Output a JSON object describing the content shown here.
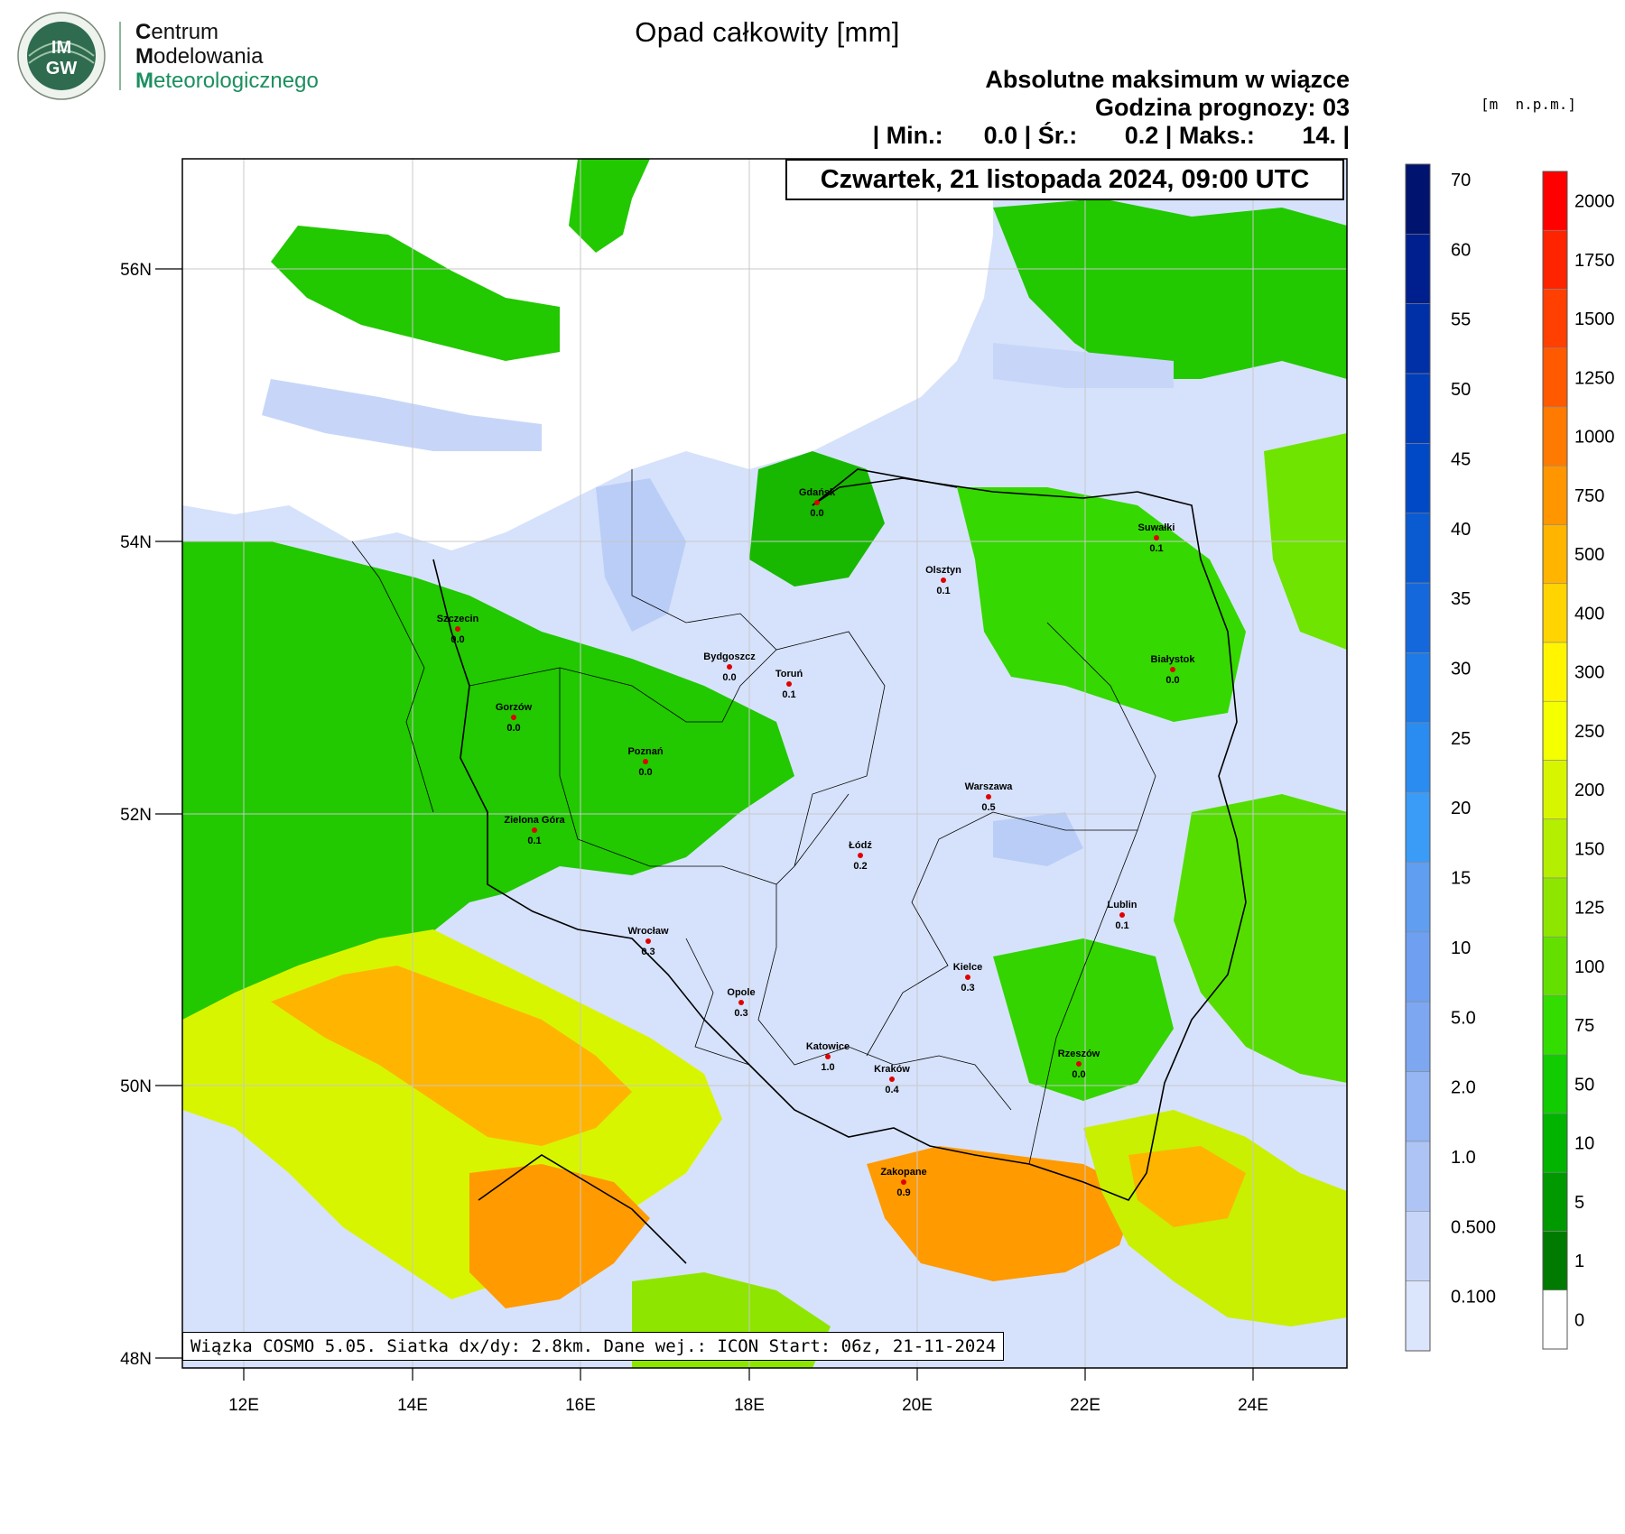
{
  "header": {
    "org_line1_initial": "C",
    "org_line1_rest": "entrum",
    "org_line2_initial": "M",
    "org_line2_rest": "odelowania",
    "org_line3_initial": "M",
    "org_line3_rest": "eteorologicznego",
    "logo_text_top": "IM",
    "logo_text_bottom": "GW"
  },
  "title": "Opad całkowity [mm]",
  "subtitle": {
    "line1": "Absolutne maksimum w wiązce",
    "line2": "Godzina prognozy: 03",
    "line3": "| Min.:      0.0 | Śr.:       0.2 | Maks.:       14. |"
  },
  "date_label": "Czwartek, 21 listopada 2024, 09:00 UTC",
  "footer": "Wiązka COSMO 5.05. Siatka dx/dy: 2.8km. Dane wej.: ICON Start: 06z, 21-11-2024",
  "elevation_unit": "[m  n.p.m.]",
  "axes": {
    "lat_ticks": [
      "56N",
      "54N",
      "52N",
      "50N",
      "48N"
    ],
    "lon_ticks": [
      "12E",
      "14E",
      "16E",
      "18E",
      "20E",
      "22E",
      "24E"
    ]
  },
  "precip_scale": {
    "labels": [
      "70",
      "60",
      "55",
      "50",
      "45",
      "40",
      "35",
      "30",
      "25",
      "20",
      "15",
      "10",
      "5.0",
      "2.0",
      "1.0",
      "0.500",
      "0.100"
    ],
    "colors": [
      "#00136e",
      "#001f8e",
      "#0030a8",
      "#003db8",
      "#0049c6",
      "#0a5ad2",
      "#1468dc",
      "#1e7ae6",
      "#2a8cf0",
      "#3a9cf6",
      "#5f9ef0",
      "#6e9ff0",
      "#7ea7f1",
      "#95b5f3",
      "#adc4f5",
      "#c7d6f8",
      "#dbe5fb"
    ]
  },
  "elev_scale": {
    "labels": [
      "2000",
      "1750",
      "1500",
      "1250",
      "1000",
      "750",
      "500",
      "400",
      "300",
      "250",
      "200",
      "150",
      "125",
      "100",
      "75",
      "50",
      "10",
      "5",
      "1",
      "0"
    ],
    "colors": [
      "#ff0000",
      "#ff2400",
      "#ff4000",
      "#ff5a00",
      "#ff7a00",
      "#ff9600",
      "#ffb400",
      "#ffd400",
      "#fff500",
      "#f5ff00",
      "#d8f500",
      "#b4ee00",
      "#8ee600",
      "#64e000",
      "#34dd00",
      "#10cc00",
      "#00b400",
      "#009a00",
      "#007a00",
      "#ffffff"
    ]
  },
  "cities": [
    {
      "name": "Gdańsk",
      "value": "0.0"
    },
    {
      "name": "Suwałki",
      "value": "0.1"
    },
    {
      "name": "Olsztyn",
      "value": "0.1"
    },
    {
      "name": "Szczecin",
      "value": "0.0"
    },
    {
      "name": "Bydgoszcz",
      "value": "0.0"
    },
    {
      "name": "Toruń",
      "value": "0.1"
    },
    {
      "name": "Białystok",
      "value": "0.0"
    },
    {
      "name": "Gorzów",
      "value": "0.0"
    },
    {
      "name": "Poznań",
      "value": "0.0"
    },
    {
      "name": "Warszawa",
      "value": "0.5"
    },
    {
      "name": "Zielona Góra",
      "value": "0.1"
    },
    {
      "name": "Łódź",
      "value": "0.2"
    },
    {
      "name": "Lublin",
      "value": "0.1"
    },
    {
      "name": "Wrocław",
      "value": "0.3"
    },
    {
      "name": "Kielce",
      "value": "0.3"
    },
    {
      "name": "Opole",
      "value": "0.3"
    },
    {
      "name": "Katowice",
      "value": "1.0"
    },
    {
      "name": "Kraków",
      "value": "0.4"
    },
    {
      "name": "Rzeszów",
      "value": "0.0"
    },
    {
      "name": "Zakopane",
      "value": "0.9"
    }
  ]
}
